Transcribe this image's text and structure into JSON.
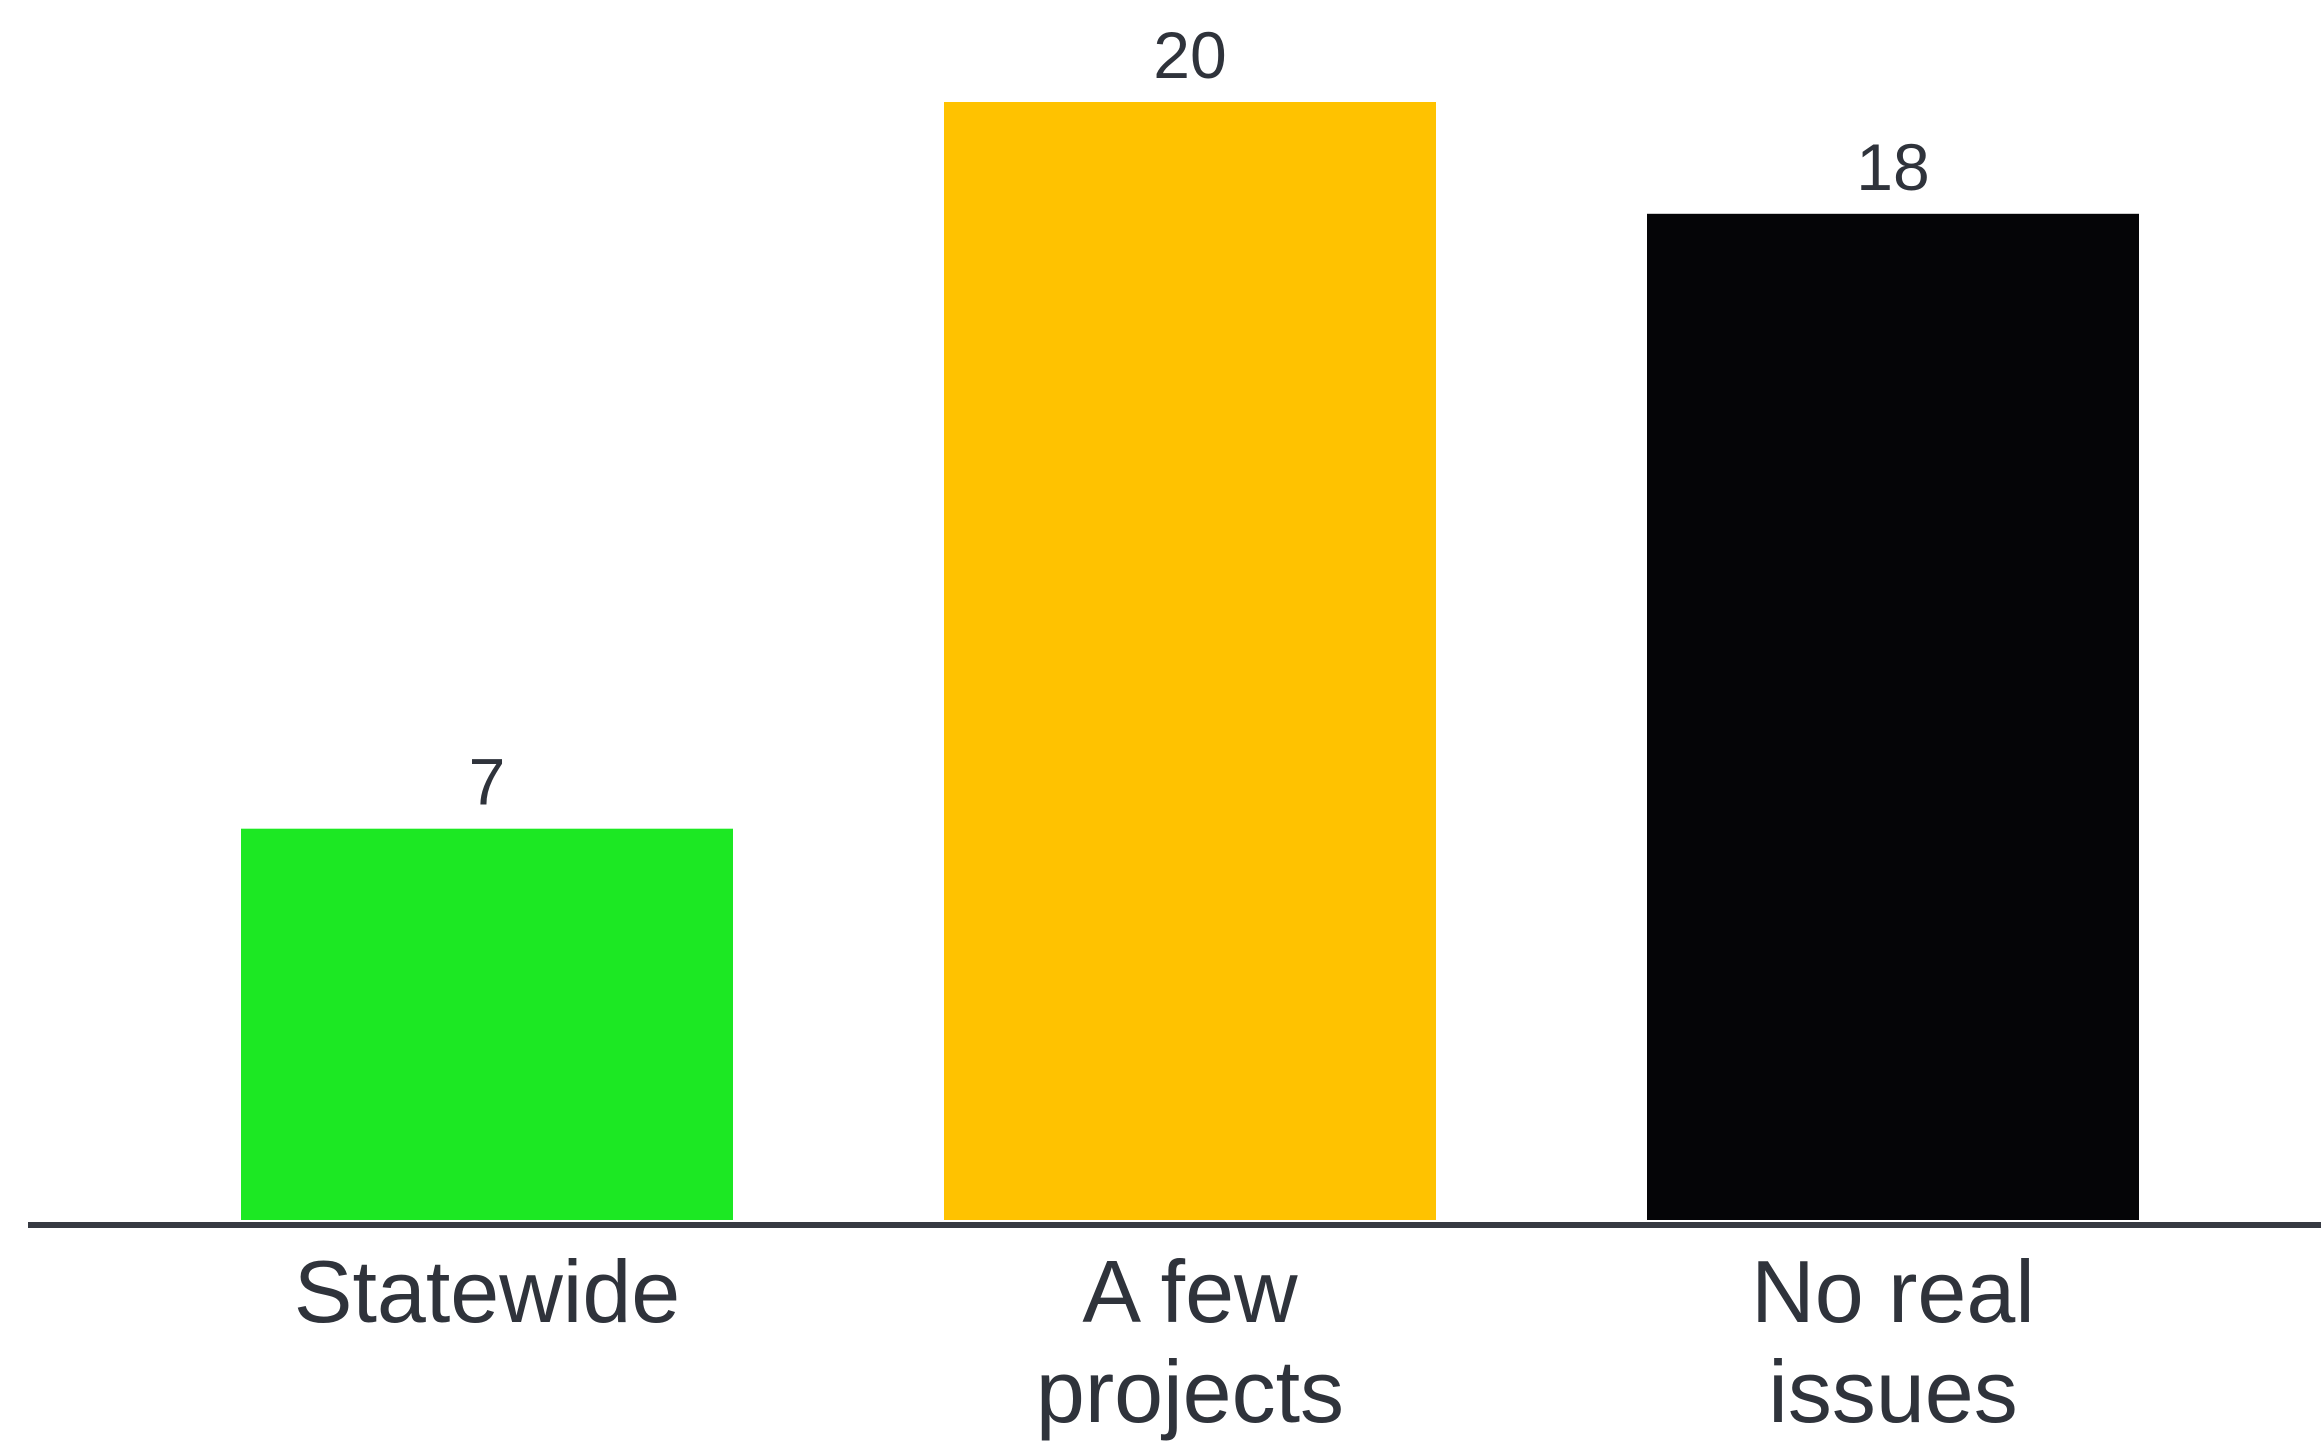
{
  "chart_data": {
    "type": "bar",
    "categories": [
      [
        "Statewide"
      ],
      [
        "A few",
        "projects"
      ],
      [
        "No real",
        "issues"
      ]
    ],
    "values": [
      7,
      20,
      18
    ],
    "colors": [
      "#1ce823",
      "#ffc200",
      "#050507"
    ],
    "ylim": [
      0,
      20
    ],
    "grid": false,
    "title": "",
    "xlabel": "",
    "ylabel": ""
  },
  "style": {
    "axis_color": "#363a42",
    "text_color": "#2f333b",
    "background": "#ffffff"
  }
}
